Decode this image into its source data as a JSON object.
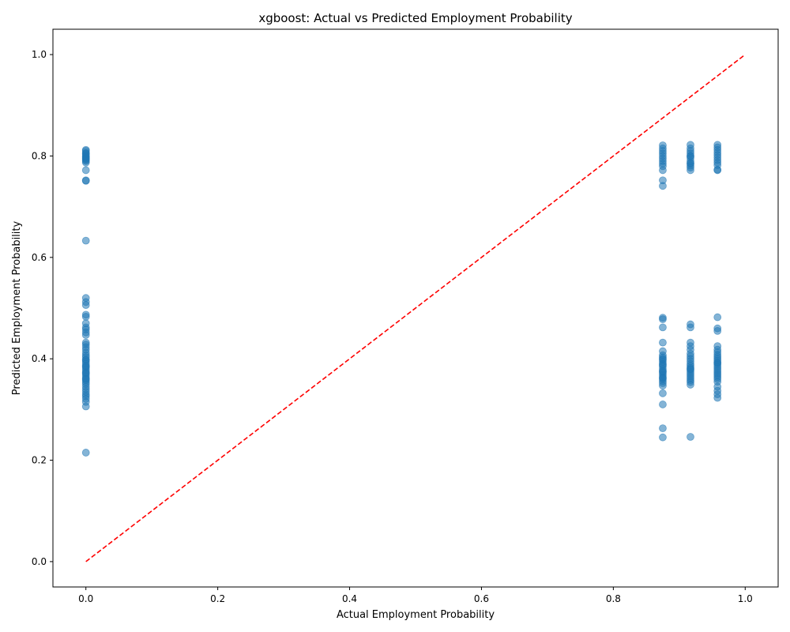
{
  "chart_data": {
    "type": "scatter",
    "title": "xgboost: Actual vs Predicted Employment Probability",
    "xlabel": "Actual Employment Probability",
    "ylabel": "Predicted Employment Probability",
    "xlim": [
      -0.05,
      1.05
    ],
    "ylim": [
      -0.05,
      1.05
    ],
    "xticks": [
      "0.0",
      "0.2",
      "0.4",
      "0.6",
      "0.8",
      "1.0"
    ],
    "yticks": [
      "0.0",
      "0.2",
      "0.4",
      "0.6",
      "0.8",
      "1.0"
    ],
    "grid": false,
    "point_color": "#1f77b4",
    "point_opacity": 0.55,
    "reference_line": {
      "from": [
        0,
        0
      ],
      "to": [
        1,
        1
      ],
      "color": "#ff0000",
      "style": "dashed"
    },
    "series": [
      {
        "x": [
          0,
          0,
          0,
          0,
          0,
          0,
          0,
          0,
          0,
          0,
          0,
          0,
          0,
          0,
          0,
          0,
          0,
          0,
          0,
          0,
          0,
          0,
          0,
          0,
          0,
          0,
          0,
          0,
          0,
          0,
          0,
          0,
          0,
          0,
          0,
          0,
          0,
          0,
          0,
          0,
          0,
          0,
          0,
          0,
          0,
          0,
          0,
          0,
          0,
          0,
          0,
          0,
          0,
          0,
          0,
          0,
          0,
          0,
          0,
          0,
          0.875,
          0.875,
          0.875,
          0.875,
          0.875,
          0.875,
          0.875,
          0.875,
          0.875,
          0.875,
          0.875,
          0.875,
          0.875,
          0.875,
          0.875,
          0.875,
          0.875,
          0.875,
          0.875,
          0.875,
          0.875,
          0.875,
          0.875,
          0.875,
          0.875,
          0.875,
          0.875,
          0.875,
          0.875,
          0.875,
          0.875,
          0.875,
          0.875,
          0.875,
          0.875,
          0.875,
          0.875,
          0.875,
          0.875,
          0.875,
          0.917,
          0.917,
          0.917,
          0.917,
          0.917,
          0.917,
          0.917,
          0.917,
          0.917,
          0.917,
          0.917,
          0.917,
          0.917,
          0.917,
          0.917,
          0.917,
          0.917,
          0.917,
          0.917,
          0.917,
          0.917,
          0.917,
          0.917,
          0.917,
          0.917,
          0.917,
          0.917,
          0.917,
          0.917,
          0.917,
          0.917,
          0.917,
          0.917,
          0.917,
          0.917,
          0.958,
          0.958,
          0.958,
          0.958,
          0.958,
          0.958,
          0.958,
          0.958,
          0.958,
          0.958,
          0.958,
          0.958,
          0.958,
          0.958,
          0.958,
          0.958,
          0.958,
          0.958,
          0.958,
          0.958,
          0.958,
          0.958,
          0.958,
          0.958,
          0.958,
          0.958,
          0.958,
          0.958,
          0.958,
          0.958,
          0.958,
          0.958,
          0.958,
          0.958,
          0.958,
          0.958
        ],
        "y": [
          0.812,
          0.806,
          0.803,
          0.8,
          0.797,
          0.794,
          0.79,
          0.787,
          0.772,
          0.752,
          0.751,
          0.633,
          0.52,
          0.512,
          0.506,
          0.487,
          0.483,
          0.47,
          0.462,
          0.458,
          0.452,
          0.447,
          0.432,
          0.428,
          0.423,
          0.418,
          0.412,
          0.407,
          0.403,
          0.398,
          0.394,
          0.39,
          0.386,
          0.382,
          0.378,
          0.374,
          0.37,
          0.366,
          0.362,
          0.358,
          0.354,
          0.35,
          0.345,
          0.34,
          0.335,
          0.33,
          0.326,
          0.321,
          0.315,
          0.306,
          0.215,
          0.398,
          0.385,
          0.372,
          0.36,
          0.81,
          0.799,
          0.792,
          0.805,
          0.795,
          0.821,
          0.815,
          0.81,
          0.805,
          0.8,
          0.795,
          0.79,
          0.785,
          0.78,
          0.772,
          0.752,
          0.741,
          0.481,
          0.478,
          0.462,
          0.432,
          0.415,
          0.407,
          0.403,
          0.398,
          0.394,
          0.39,
          0.385,
          0.38,
          0.376,
          0.372,
          0.368,
          0.364,
          0.36,
          0.356,
          0.352,
          0.347,
          0.332,
          0.31,
          0.263,
          0.245,
          0.4,
          0.388,
          0.375,
          0.362,
          0.822,
          0.815,
          0.81,
          0.805,
          0.8,
          0.796,
          0.79,
          0.786,
          0.781,
          0.777,
          0.772,
          0.468,
          0.462,
          0.432,
          0.425,
          0.418,
          0.41,
          0.405,
          0.4,
          0.395,
          0.39,
          0.386,
          0.382,
          0.378,
          0.374,
          0.37,
          0.366,
          0.362,
          0.358,
          0.354,
          0.349,
          0.246,
          0.8,
          0.785,
          0.38,
          0.822,
          0.817,
          0.812,
          0.807,
          0.802,
          0.797,
          0.792,
          0.787,
          0.782,
          0.773,
          0.772,
          0.482,
          0.46,
          0.455,
          0.425,
          0.418,
          0.413,
          0.408,
          0.404,
          0.4,
          0.396,
          0.392,
          0.388,
          0.384,
          0.38,
          0.376,
          0.372,
          0.368,
          0.364,
          0.36,
          0.355,
          0.345,
          0.337,
          0.33,
          0.323,
          0.392
        ]
      }
    ]
  }
}
